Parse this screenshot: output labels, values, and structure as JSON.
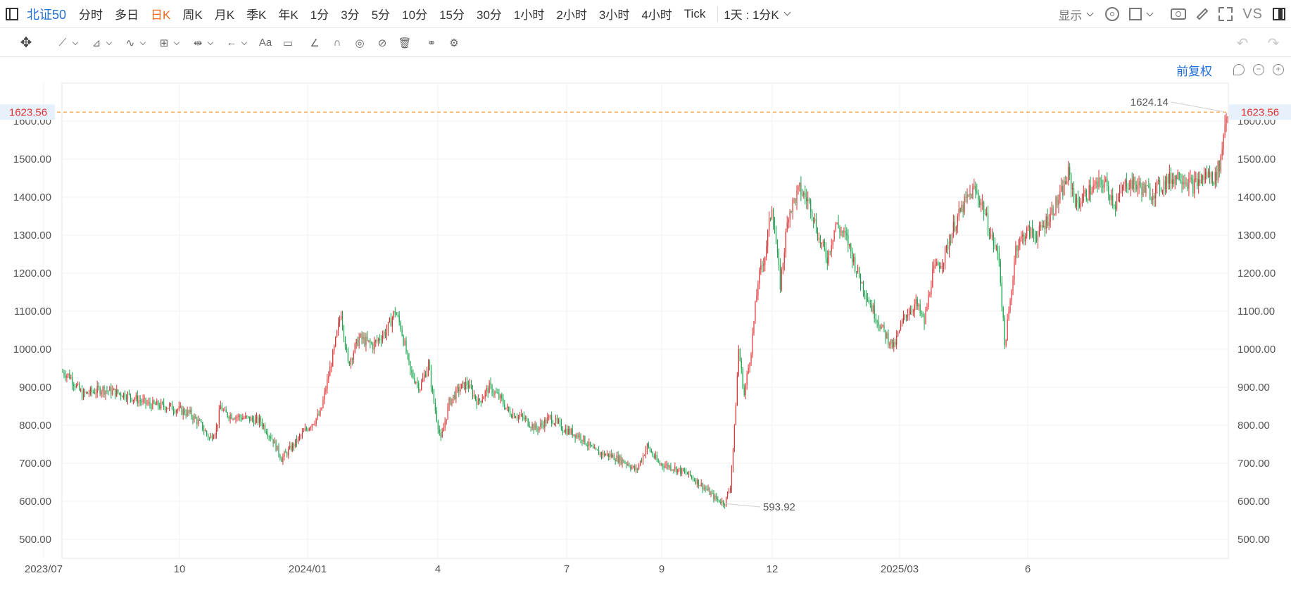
{
  "toolbar": {
    "symbol": "北证50",
    "periods": [
      "分时",
      "多日",
      "日K",
      "周K",
      "月K",
      "季K",
      "年K",
      "1分",
      "3分",
      "5分",
      "10分",
      "15分",
      "30分",
      "1小时",
      "2小时",
      "3小时",
      "4小时",
      "Tick"
    ],
    "active_period": "日K",
    "range_label": "1天 : 1分K",
    "display_label": "显示",
    "vs_label": "VS",
    "adjust_label": "前复权",
    "draw_text_icon": "Aa",
    "icons": [
      "gear-icon",
      "square-icon",
      "camera-icon",
      "pencil-icon",
      "fullscreen-icon",
      "panel-icon",
      "move-icon",
      "trendline-icon",
      "polyline-icon",
      "wave-icon",
      "fib-icon",
      "measure-icon",
      "arrow-icon",
      "text-icon",
      "comment-icon",
      "ruler-icon",
      "magnet-icon",
      "eye-icon",
      "hide-icon",
      "trash-icon",
      "link-icon",
      "settings-icon",
      "undo-icon",
      "redo-icon"
    ]
  },
  "colors": {
    "up": "#e03131",
    "down": "#16a34a",
    "accent": "#1f6fd6",
    "active": "#f26a1b",
    "price_line": "#f59f3a"
  },
  "chart_data": {
    "type": "candlestick",
    "title": "",
    "xlabel": "",
    "ylabel": "",
    "ylim": [
      450,
      1700
    ],
    "y_ticks": [
      "500.00",
      "600.00",
      "700.00",
      "800.00",
      "900.00",
      "1000.00",
      "1100.00",
      "1200.00",
      "1300.00",
      "1400.00",
      "1500.00",
      "1600.00"
    ],
    "x_ticks": [
      "2023/07",
      "10",
      "2024/01",
      "4",
      "7",
      "9",
      "12",
      "2025/03",
      "6"
    ],
    "current_price": "1623.56",
    "current_price_value": 1623.56,
    "annotations": [
      {
        "label": "1624.14",
        "value": 1624.14,
        "kind": "high"
      },
      {
        "label": "593.92",
        "value": 593.92,
        "kind": "low"
      }
    ],
    "trend": [
      {
        "t": 0,
        "v": 940
      },
      {
        "t": 5,
        "v": 930
      },
      {
        "t": 14,
        "v": 880
      },
      {
        "t": 28,
        "v": 895
      },
      {
        "t": 46,
        "v": 880
      },
      {
        "t": 62,
        "v": 855
      },
      {
        "t": 78,
        "v": 848
      },
      {
        "t": 92,
        "v": 830
      },
      {
        "t": 100,
        "v": 800
      },
      {
        "t": 106,
        "v": 765
      },
      {
        "t": 111,
        "v": 790
      },
      {
        "t": 114,
        "v": 850
      },
      {
        "t": 117,
        "v": 830
      },
      {
        "t": 130,
        "v": 820
      },
      {
        "t": 143,
        "v": 810
      },
      {
        "t": 152,
        "v": 760
      },
      {
        "t": 158,
        "v": 712
      },
      {
        "t": 166,
        "v": 745
      },
      {
        "t": 176,
        "v": 790
      },
      {
        "t": 186,
        "v": 830
      },
      {
        "t": 196,
        "v": 1000
      },
      {
        "t": 201,
        "v": 1100
      },
      {
        "t": 206,
        "v": 960
      },
      {
        "t": 214,
        "v": 1030
      },
      {
        "t": 224,
        "v": 1010
      },
      {
        "t": 234,
        "v": 1050
      },
      {
        "t": 240,
        "v": 1100
      },
      {
        "t": 244,
        "v": 1060
      },
      {
        "t": 251,
        "v": 940
      },
      {
        "t": 258,
        "v": 900
      },
      {
        "t": 264,
        "v": 960
      },
      {
        "t": 268,
        "v": 860
      },
      {
        "t": 273,
        "v": 760
      },
      {
        "t": 279,
        "v": 860
      },
      {
        "t": 286,
        "v": 895
      },
      {
        "t": 292,
        "v": 910
      },
      {
        "t": 300,
        "v": 860
      },
      {
        "t": 308,
        "v": 900
      },
      {
        "t": 316,
        "v": 870
      },
      {
        "t": 322,
        "v": 835
      },
      {
        "t": 332,
        "v": 820
      },
      {
        "t": 342,
        "v": 790
      },
      {
        "t": 352,
        "v": 820
      },
      {
        "t": 362,
        "v": 790
      },
      {
        "t": 374,
        "v": 770
      },
      {
        "t": 384,
        "v": 730
      },
      {
        "t": 396,
        "v": 720
      },
      {
        "t": 408,
        "v": 700
      },
      {
        "t": 414,
        "v": 680
      },
      {
        "t": 422,
        "v": 745
      },
      {
        "t": 430,
        "v": 700
      },
      {
        "t": 440,
        "v": 690
      },
      {
        "t": 452,
        "v": 670
      },
      {
        "t": 462,
        "v": 640
      },
      {
        "t": 472,
        "v": 605
      },
      {
        "t": 478,
        "v": 596
      },
      {
        "t": 482,
        "v": 640
      },
      {
        "t": 485,
        "v": 790
      },
      {
        "t": 488,
        "v": 1000
      },
      {
        "t": 492,
        "v": 880
      },
      {
        "t": 497,
        "v": 1000
      },
      {
        "t": 502,
        "v": 1180
      },
      {
        "t": 507,
        "v": 1250
      },
      {
        "t": 512,
        "v": 1380
      },
      {
        "t": 518,
        "v": 1170
      },
      {
        "t": 524,
        "v": 1360
      },
      {
        "t": 532,
        "v": 1420
      },
      {
        "t": 540,
        "v": 1380
      },
      {
        "t": 546,
        "v": 1290
      },
      {
        "t": 552,
        "v": 1240
      },
      {
        "t": 558,
        "v": 1330
      },
      {
        "t": 566,
        "v": 1290
      },
      {
        "t": 574,
        "v": 1200
      },
      {
        "t": 584,
        "v": 1110
      },
      {
        "t": 592,
        "v": 1050
      },
      {
        "t": 600,
        "v": 1005
      },
      {
        "t": 608,
        "v": 1090
      },
      {
        "t": 616,
        "v": 1120
      },
      {
        "t": 622,
        "v": 1070
      },
      {
        "t": 628,
        "v": 1200
      },
      {
        "t": 636,
        "v": 1240
      },
      {
        "t": 644,
        "v": 1330
      },
      {
        "t": 652,
        "v": 1390
      },
      {
        "t": 658,
        "v": 1420
      },
      {
        "t": 664,
        "v": 1380
      },
      {
        "t": 670,
        "v": 1300
      },
      {
        "t": 676,
        "v": 1240
      },
      {
        "t": 680,
        "v": 1010
      },
      {
        "t": 684,
        "v": 1120
      },
      {
        "t": 688,
        "v": 1270
      },
      {
        "t": 696,
        "v": 1310
      },
      {
        "t": 704,
        "v": 1300
      },
      {
        "t": 712,
        "v": 1350
      },
      {
        "t": 720,
        "v": 1400
      },
      {
        "t": 726,
        "v": 1460
      },
      {
        "t": 732,
        "v": 1380
      },
      {
        "t": 742,
        "v": 1420
      },
      {
        "t": 752,
        "v": 1440
      },
      {
        "t": 760,
        "v": 1380
      },
      {
        "t": 768,
        "v": 1440
      },
      {
        "t": 776,
        "v": 1430
      },
      {
        "t": 786,
        "v": 1410
      },
      {
        "t": 796,
        "v": 1440
      },
      {
        "t": 806,
        "v": 1460
      },
      {
        "t": 816,
        "v": 1430
      },
      {
        "t": 826,
        "v": 1460
      },
      {
        "t": 832,
        "v": 1450
      },
      {
        "t": 836,
        "v": 1500
      },
      {
        "t": 839,
        "v": 1600
      },
      {
        "t": 841,
        "v": 1623
      }
    ]
  }
}
